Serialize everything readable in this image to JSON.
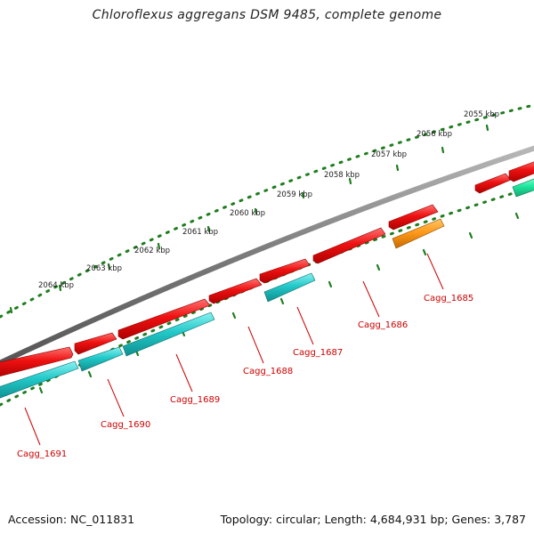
{
  "title": "Chloroflexus aggregans DSM 9485, complete genome",
  "accession": "Accession: NC_011831",
  "summary": "Topology: circular; Length: 4,684,931 bp; Genes: 3,787",
  "colors": {
    "backbone": "#7a7a7a",
    "tick": "#1e7d1e",
    "gene_forward": "#ee1111",
    "gene_reverse": "#22c8c8",
    "gene_highlight": "#ff9a1a",
    "gene_other": "#22e8a0",
    "label": "#cc0000"
  },
  "scale": {
    "unit": "kbp",
    "labels": [
      "2055 kbp",
      "2056 kbp",
      "2057 kbp",
      "2058 kbp",
      "2059 kbp",
      "2060 kbp",
      "2061 kbp",
      "2062 kbp",
      "2063 kbp",
      "2064 kbp"
    ]
  },
  "gene_labels": [
    "Cagg_1685",
    "Cagg_1686",
    "Cagg_1687",
    "Cagg_1688",
    "Cagg_1689",
    "Cagg_1690",
    "Cagg_1691"
  ]
}
